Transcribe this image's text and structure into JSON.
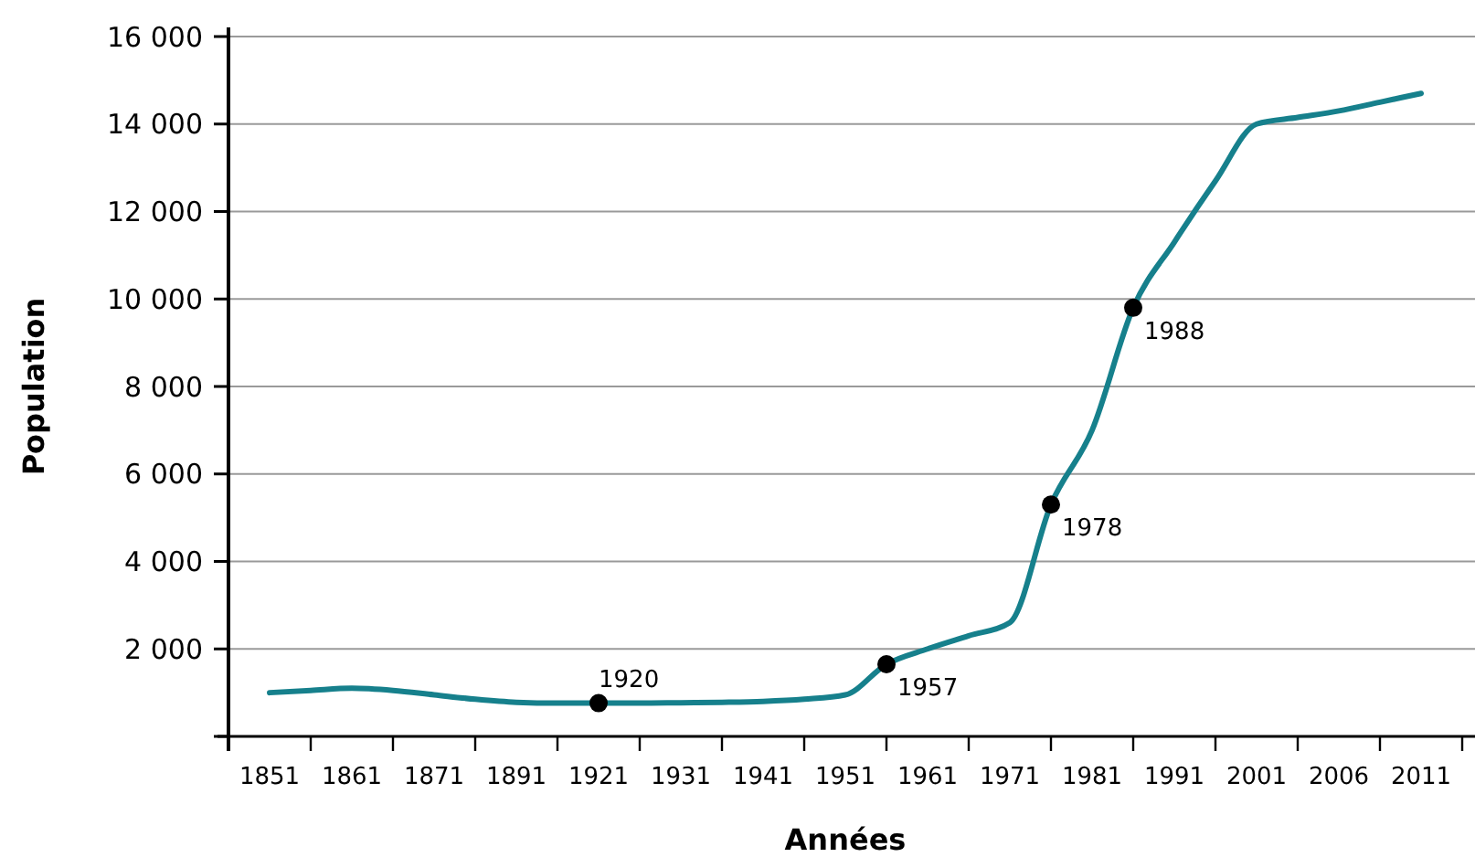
{
  "chart_data": {
    "type": "line",
    "xlabel": "Années",
    "ylabel": "Population",
    "categories": [
      "1851",
      null,
      "1861",
      null,
      "1871",
      null,
      "1891",
      null,
      "1921",
      null,
      "1931",
      null,
      "1941",
      null,
      "1951",
      null,
      "1961",
      null,
      "1971",
      null,
      "1981",
      null,
      "1991",
      null,
      "2001",
      null,
      "2006",
      null,
      "2011"
    ],
    "series": [
      {
        "color": "#16808c",
        "values": [
          1000,
          1050,
          1100,
          1050,
          950,
          850,
          780,
          760,
          760,
          760,
          770,
          780,
          800,
          850,
          950,
          1650,
          2000,
          2300,
          2600,
          5300,
          7000,
          9800,
          11300,
          12700,
          14000,
          14150,
          14300,
          14500,
          14700
        ]
      },
      {
        "type": "scatter",
        "color": "#000000",
        "marker": "circle",
        "values": [
          null,
          null,
          null,
          null,
          null,
          null,
          null,
          null,
          760,
          null,
          null,
          null,
          null,
          null,
          null,
          1650,
          null,
          null,
          null,
          5300,
          null,
          9800,
          null,
          null,
          null,
          null,
          null,
          null,
          null
        ]
      }
    ],
    "ylim": [
      0,
      16000
    ],
    "yticks": [
      {
        "value": 0,
        "label": null
      },
      {
        "value": 2000,
        "label": "2 000"
      },
      {
        "value": 4000,
        "label": "4 000"
      },
      {
        "value": 6000,
        "label": "6 000"
      },
      {
        "value": 8000,
        "label": "8 000"
      },
      {
        "value": 10000,
        "label": "10 000"
      },
      {
        "value": 12000,
        "label": "12 000"
      },
      {
        "value": 14000,
        "label": "14 000"
      },
      {
        "value": 16000,
        "label": "16 000"
      }
    ],
    "grid": "y",
    "marker": "none",
    "line_style": "solid",
    "annotations": [
      "1920",
      "1957",
      "1978",
      "1988"
    ]
  }
}
